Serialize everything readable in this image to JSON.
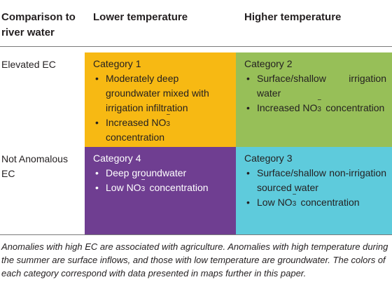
{
  "headers": {
    "col0": "Comparison to river water",
    "col1": "Lower temperature",
    "col2": "Higher temperature"
  },
  "rows": {
    "row1_label": "Elevated EC",
    "row2_label": "Not Anomalous EC"
  },
  "cells": {
    "category1": {
      "title": "Category 1",
      "item1": "Moderately deep groundwater mixed with irrigation infiltration",
      "item2_prefix": "Increased NO",
      "item2_suffix": "concentration"
    },
    "category2": {
      "title": "Category 2",
      "item1": "Surface/shallow irrigation water",
      "item2_prefix": "Increased NO",
      "item2_suffix": "concentration"
    },
    "category4": {
      "title": "Category 4",
      "item1": "Deep groundwater",
      "item2_prefix": "Low NO",
      "item2_suffix": "concentration"
    },
    "category3": {
      "title": "Category 3",
      "item1": "Surface/shallow non-irrigation sourced water",
      "item2_prefix": "Low NO",
      "item2_suffix": "concentration"
    }
  },
  "chem": {
    "sub": "3",
    "sup": "−"
  },
  "colors": {
    "category1": "#f7b913",
    "category2": "#97bf58",
    "category3": "#5ecbdc",
    "category4": "#6f3e91"
  },
  "caption": "Anomalies with high EC are associated with agriculture. Anomalies with high temperature during the summer are surface inflows, and those with low temperature are groundwater. The colors of each category correspond with data presented in maps further in this paper."
}
